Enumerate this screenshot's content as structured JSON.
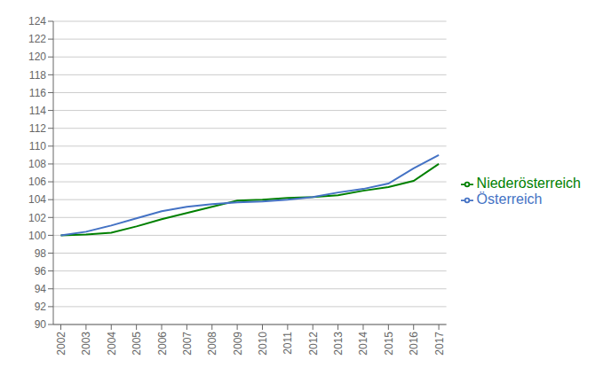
{
  "chart_data": {
    "type": "line",
    "x": [
      2002,
      2003,
      2004,
      2005,
      2006,
      2007,
      2008,
      2009,
      2010,
      2011,
      2012,
      2013,
      2014,
      2015,
      2016,
      2017
    ],
    "series": [
      {
        "name": "Niederösterreich",
        "color": "#008000",
        "values": [
          100.0,
          100.1,
          100.3,
          101.0,
          101.8,
          102.5,
          103.2,
          103.9,
          104.0,
          104.2,
          104.3,
          104.5,
          105.0,
          105.4,
          106.1,
          108.0
        ]
      },
      {
        "name": "Österreich",
        "color": "#4472C4",
        "values": [
          100.0,
          100.4,
          101.1,
          101.9,
          102.7,
          103.2,
          103.5,
          103.7,
          103.8,
          104.0,
          104.3,
          104.8,
          105.2,
          105.8,
          107.5,
          109.0
        ]
      }
    ],
    "xlim": [
      2001.7,
      2017.3
    ],
    "xticks": [
      2002,
      2003,
      2004,
      2005,
      2006,
      2007,
      2008,
      2009,
      2010,
      2011,
      2012,
      2013,
      2014,
      2015,
      2016,
      2017
    ],
    "ylim": [
      90,
      124
    ],
    "yticks": [
      90,
      92,
      94,
      96,
      98,
      100,
      102,
      104,
      106,
      108,
      110,
      112,
      114,
      116,
      118,
      120,
      122,
      124
    ],
    "grid": true,
    "legend": "right"
  }
}
